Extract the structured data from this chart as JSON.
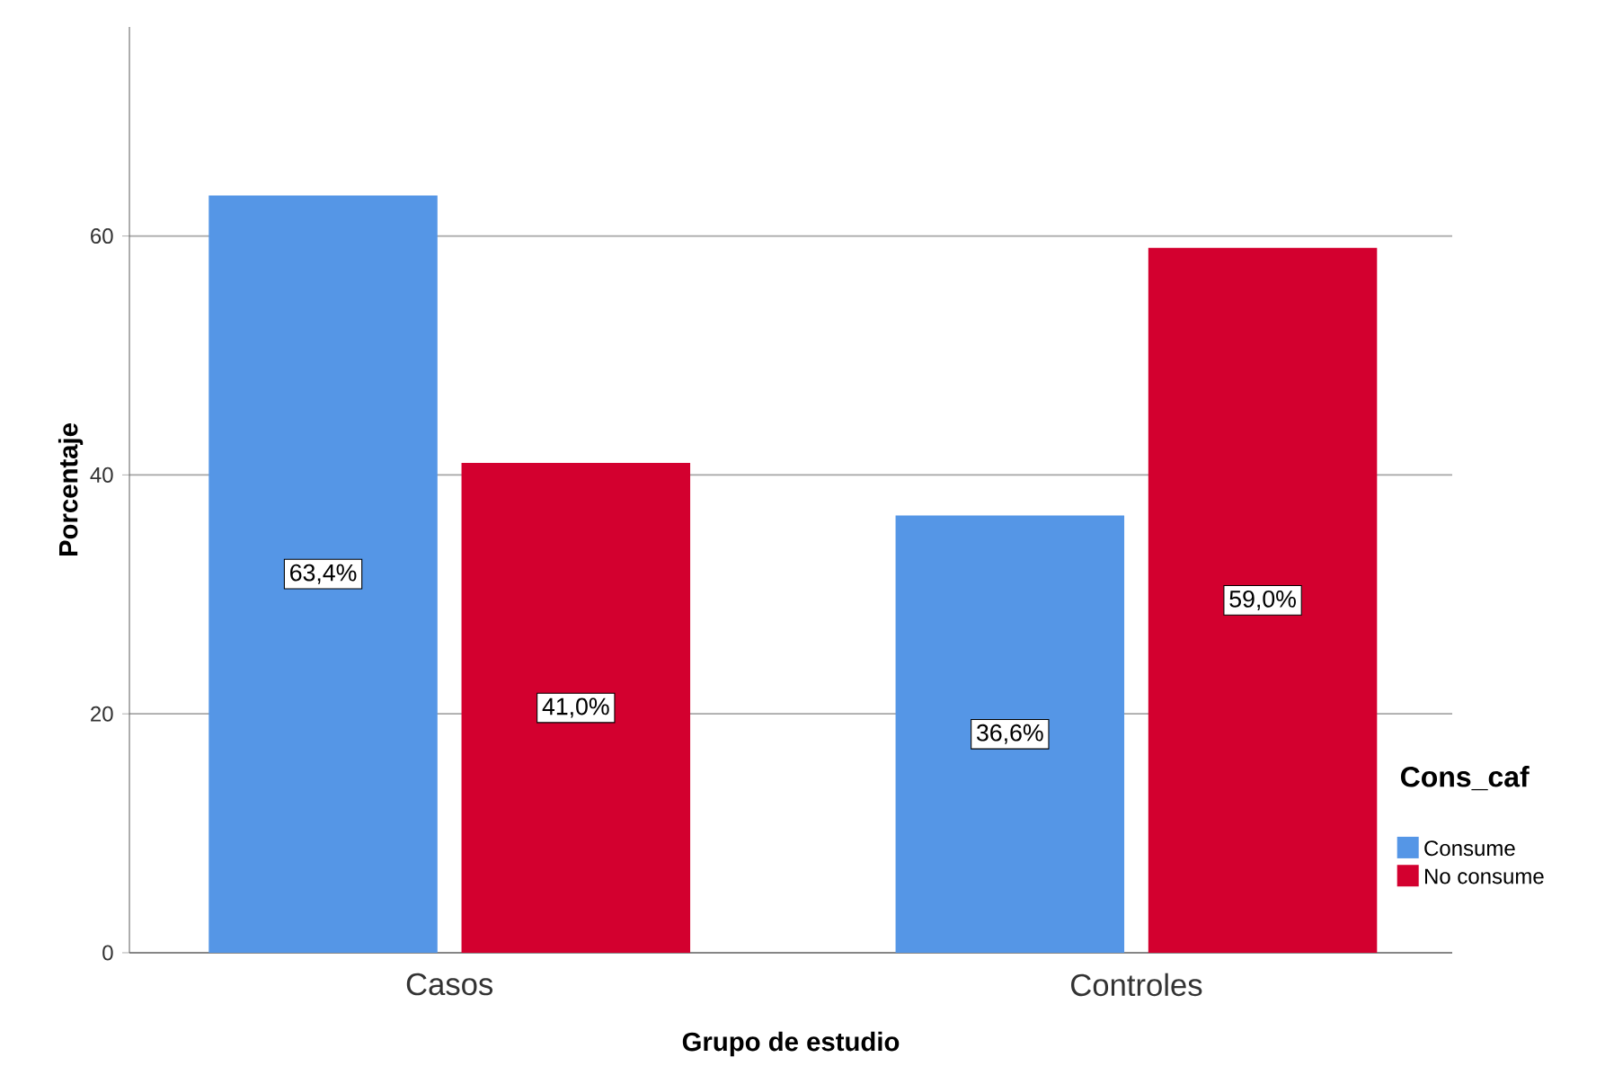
{
  "chart_data": {
    "type": "bar",
    "xlabel": "Grupo de estudio",
    "ylabel": "Porcentaje",
    "legend_title": "Cons_caf",
    "categories": [
      "Casos",
      "Controles"
    ],
    "series": [
      {
        "name": "Consume",
        "color": "#5596e6",
        "values": [
          63.4,
          36.6
        ],
        "value_labels": [
          "63,4%",
          "36,6%"
        ]
      },
      {
        "name": "No consume",
        "color": "#d3002f",
        "values": [
          41.0,
          59.0
        ],
        "value_labels": [
          "41,0%",
          "59,0%"
        ]
      }
    ],
    "ylim": [
      0,
      77.5
    ],
    "yticks": [
      0,
      20,
      40,
      60
    ],
    "grid": "y",
    "legend": "right"
  }
}
